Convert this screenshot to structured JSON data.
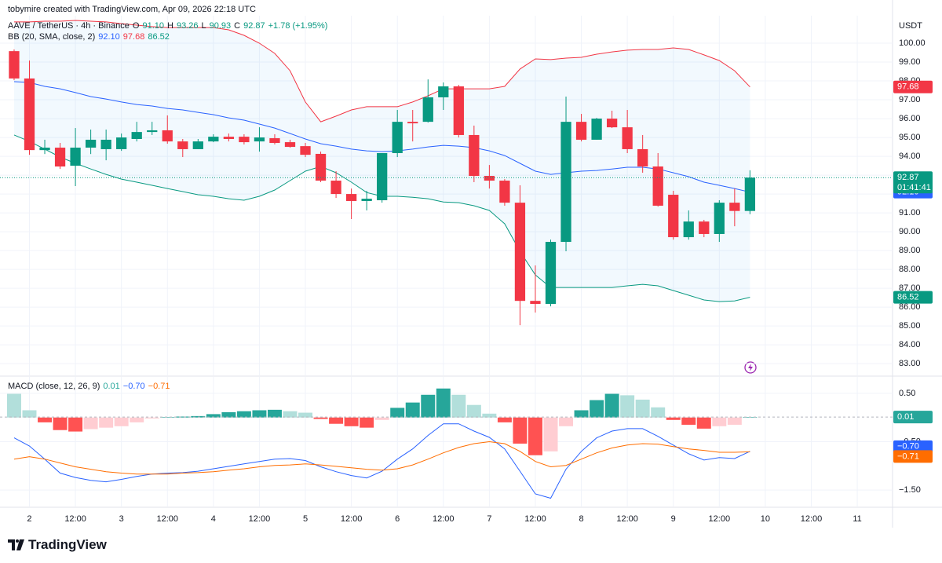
{
  "header": {
    "credit": "tobymire created with TradingView.com, Apr 09, 2026 22:18 UTC"
  },
  "footer": {
    "brand": "TradingView"
  },
  "chart_data": [
    {
      "type": "candlestick",
      "title": "AAVE / TetherUS · 4h · Binance",
      "axis_unit": "USDT",
      "legend": {
        "items": [
          {
            "label": "O",
            "value": "91.10"
          },
          {
            "label": "H",
            "value": "93.26"
          },
          {
            "label": "L",
            "value": "90.93"
          },
          {
            "label": "C",
            "value": "92.87"
          }
        ],
        "change": "+1.78 (+1.95%)"
      },
      "countdown": "01:41:41",
      "up_color": "#089981",
      "down_color": "#f23645",
      "open": [
        99.58,
        98.13,
        94.33,
        94.46,
        93.5,
        94.46,
        94.38,
        94.38,
        94.92,
        95.29,
        95.38,
        94.79,
        94.38,
        94.79,
        95.04,
        95.04,
        94.79,
        94.96,
        94.75,
        94.54,
        94.13,
        92.71,
        92.0,
        91.63,
        91.67,
        94.17,
        95.83,
        95.83,
        97.13,
        97.71,
        95.13,
        92.96,
        92.71,
        91.54,
        86.33,
        86.17,
        89.46,
        95.83,
        94.88,
        96.0,
        95.54,
        94.38,
        93.46,
        91.96,
        89.71,
        90.54,
        89.88,
        91.54,
        91.1
      ],
      "high": [
        99.67,
        99.08,
        94.88,
        94.71,
        95.5,
        95.42,
        95.42,
        95.21,
        95.83,
        95.83,
        96.17,
        94.92,
        94.92,
        95.17,
        95.21,
        95.17,
        95.54,
        95.17,
        94.88,
        94.71,
        94.25,
        93.21,
        92.29,
        92.17,
        94.17,
        96.46,
        96.46,
        98.08,
        97.92,
        97.79,
        95.63,
        93.54,
        92.79,
        92.46,
        88.21,
        89.58,
        97.17,
        96.25,
        96.04,
        96.42,
        96.46,
        95.13,
        94.17,
        92.17,
        91.13,
        90.63,
        91.67,
        92.29,
        93.26
      ],
      "low": [
        98.04,
        94.08,
        94.12,
        93.33,
        92.42,
        94.12,
        93.79,
        94.29,
        94.79,
        95.13,
        94.67,
        93.96,
        94.38,
        94.75,
        94.79,
        94.63,
        94.25,
        94.63,
        94.46,
        93.96,
        92.63,
        91.79,
        90.67,
        91.13,
        91.54,
        93.96,
        94.79,
        95.79,
        96.46,
        95.0,
        92.63,
        92.29,
        91.38,
        85.04,
        85.71,
        86.04,
        88.96,
        94.79,
        94.88,
        95.5,
        94.17,
        93.13,
        91.33,
        89.58,
        89.58,
        89.71,
        89.46,
        90.29,
        90.93
      ],
      "close": [
        98.13,
        94.33,
        94.46,
        93.46,
        94.46,
        94.88,
        94.88,
        95.0,
        95.29,
        95.38,
        94.79,
        94.38,
        94.79,
        95.04,
        94.92,
        94.75,
        95.0,
        94.71,
        94.5,
        94.08,
        92.71,
        92.0,
        91.63,
        91.75,
        94.17,
        95.83,
        95.75,
        97.13,
        97.71,
        95.13,
        92.96,
        92.71,
        91.54,
        86.33,
        86.17,
        89.46,
        95.83,
        94.88,
        96.0,
        95.54,
        94.38,
        93.46,
        91.38,
        89.71,
        90.54,
        89.88,
        91.54,
        91.1,
        92.87
      ],
      "indicator": "BB (20, SMA, close, 2)",
      "band_fill": "rgba(33,150,243,0.06)",
      "series": [
        {
          "color": "#2962ff",
          "last_label": "92.10",
          "values": [
            97.96,
            97.92,
            97.71,
            97.58,
            97.38,
            97.17,
            97.04,
            96.88,
            96.75,
            96.67,
            96.54,
            96.46,
            96.33,
            96.21,
            96.04,
            95.92,
            95.71,
            95.5,
            95.21,
            94.92,
            94.67,
            94.54,
            94.38,
            94.29,
            94.25,
            94.29,
            94.38,
            94.5,
            94.58,
            94.54,
            94.46,
            94.29,
            94.04,
            93.63,
            93.21,
            93.04,
            93.13,
            93.21,
            93.25,
            93.33,
            93.42,
            93.42,
            93.33,
            93.13,
            92.92,
            92.63,
            92.46,
            92.29,
            92.1
          ]
        },
        {
          "color": "#f23645",
          "last_label": "97.68",
          "values": [
            101.13,
            101.13,
            101.17,
            101.17,
            101.21,
            101.17,
            101.13,
            101.04,
            100.96,
            100.88,
            100.83,
            100.83,
            100.83,
            100.83,
            100.71,
            100.42,
            100.0,
            99.46,
            98.54,
            96.88,
            95.83,
            96.13,
            96.46,
            96.63,
            96.63,
            96.63,
            96.88,
            97.21,
            97.58,
            97.58,
            97.58,
            97.58,
            97.71,
            98.63,
            99.17,
            99.13,
            99.21,
            99.25,
            99.42,
            99.54,
            99.63,
            99.67,
            99.67,
            99.75,
            99.67,
            99.38,
            99.08,
            98.54,
            97.68
          ]
        },
        {
          "color": "#089981",
          "last_label": "86.52",
          "values": [
            95.13,
            94.79,
            94.38,
            93.96,
            93.63,
            93.33,
            93.04,
            92.79,
            92.63,
            92.46,
            92.29,
            92.13,
            91.96,
            91.88,
            91.75,
            91.67,
            91.88,
            92.21,
            92.71,
            93.21,
            93.46,
            93.13,
            92.63,
            92.08,
            91.88,
            91.88,
            91.83,
            91.75,
            91.58,
            91.54,
            91.38,
            91.13,
            90.42,
            88.96,
            87.71,
            87.04,
            87.04,
            87.04,
            87.04,
            87.04,
            87.13,
            87.21,
            87.13,
            86.88,
            86.63,
            86.38,
            86.29,
            86.33,
            86.52
          ]
        }
      ],
      "xlim": [
        -0.92,
        57.3
      ],
      "xticks": [
        {
          "value": 1,
          "label": "2"
        },
        {
          "value": 4,
          "label": "12:00"
        },
        {
          "value": 7,
          "label": "3"
        },
        {
          "value": 10,
          "label": "12:00"
        },
        {
          "value": 13,
          "label": "4"
        },
        {
          "value": 16,
          "label": "12:00"
        },
        {
          "value": 19,
          "label": "5"
        },
        {
          "value": 22,
          "label": "12:00"
        },
        {
          "value": 25,
          "label": "6"
        },
        {
          "value": 28,
          "label": "12:00"
        },
        {
          "value": 31,
          "label": "7"
        },
        {
          "value": 34,
          "label": "12:00"
        },
        {
          "value": 37,
          "label": "8"
        },
        {
          "value": 40,
          "label": "12:00"
        },
        {
          "value": 43,
          "label": "9"
        },
        {
          "value": 46,
          "label": "12:00"
        },
        {
          "value": 49,
          "label": "10"
        },
        {
          "value": 52,
          "label": "12:00"
        },
        {
          "value": 55,
          "label": "11"
        }
      ],
      "ylim": [
        82.38,
        101.46
      ],
      "yticks": [
        {
          "value": 83,
          "label": "83.00"
        },
        {
          "value": 84,
          "label": "84.00"
        },
        {
          "value": 85,
          "label": "85.00"
        },
        {
          "value": 86,
          "label": "86.00"
        },
        {
          "value": 87,
          "label": "87.00"
        },
        {
          "value": 88,
          "label": "88.00"
        },
        {
          "value": 89,
          "label": "89.00"
        },
        {
          "value": 90,
          "label": "90.00"
        },
        {
          "value": 91,
          "label": "91.00"
        },
        {
          "value": 92,
          "label": "92.00"
        },
        {
          "value": 93,
          "label": "93.00"
        },
        {
          "value": 94,
          "label": "94.00"
        },
        {
          "value": 95,
          "label": "95.00"
        },
        {
          "value": 96,
          "label": "96.00"
        },
        {
          "value": 97,
          "label": "97.00"
        },
        {
          "value": 98,
          "label": "98.00"
        },
        {
          "value": 99,
          "label": "99.00"
        },
        {
          "value": 100,
          "label": "100.00"
        }
      ],
      "grid": true
    },
    {
      "type": "macd",
      "title": "MACD (close, 12, 26, 9)",
      "histogram": {
        "last_label": "0.01",
        "values": [
          0.49,
          0.15,
          -0.1,
          -0.26,
          -0.29,
          -0.24,
          -0.21,
          -0.18,
          -0.1,
          -0.02,
          0.01,
          0.02,
          0.03,
          0.07,
          0.11,
          0.13,
          0.15,
          0.16,
          0.13,
          0.1,
          -0.03,
          -0.13,
          -0.18,
          -0.21,
          -0.05,
          0.2,
          0.31,
          0.47,
          0.6,
          0.47,
          0.26,
          0.08,
          -0.1,
          -0.54,
          -0.78,
          -0.7,
          -0.18,
          0.15,
          0.36,
          0.49,
          0.46,
          0.37,
          0.21,
          -0.05,
          -0.15,
          -0.23,
          -0.18,
          -0.15,
          0.01
        ],
        "colors": [
          "#b2dfdb",
          "#b2dfdb",
          "#ff5252",
          "#ff5252",
          "#ff5252",
          "#ffcdd2",
          "#ffcdd2",
          "#ffcdd2",
          "#ffcdd2",
          "#ffcdd2",
          "#26a69a",
          "#26a69a",
          "#26a69a",
          "#26a69a",
          "#26a69a",
          "#26a69a",
          "#26a69a",
          "#26a69a",
          "#b2dfdb",
          "#b2dfdb",
          "#ff5252",
          "#ff5252",
          "#ff5252",
          "#ff5252",
          "#ffcdd2",
          "#26a69a",
          "#26a69a",
          "#26a69a",
          "#26a69a",
          "#b2dfdb",
          "#b2dfdb",
          "#b2dfdb",
          "#ff5252",
          "#ff5252",
          "#ff5252",
          "#ffcdd2",
          "#ffcdd2",
          "#26a69a",
          "#26a69a",
          "#26a69a",
          "#b2dfdb",
          "#b2dfdb",
          "#b2dfdb",
          "#ff5252",
          "#ff5252",
          "#ff5252",
          "#ffcdd2",
          "#ffcdd2",
          "#26a69a"
        ],
        "color": "#26a69a"
      },
      "series": [
        {
          "color": "#2962ff",
          "last_label": "−0.70",
          "values": [
            -0.42,
            -0.59,
            -0.86,
            -1.15,
            -1.24,
            -1.3,
            -1.33,
            -1.28,
            -1.22,
            -1.17,
            -1.15,
            -1.14,
            -1.11,
            -1.06,
            -1.01,
            -0.96,
            -0.91,
            -0.86,
            -0.85,
            -0.89,
            -1.02,
            -1.12,
            -1.2,
            -1.25,
            -1.11,
            -0.86,
            -0.65,
            -0.37,
            -0.13,
            -0.13,
            -0.28,
            -0.41,
            -0.65,
            -1.11,
            -1.58,
            -1.67,
            -1.07,
            -0.7,
            -0.42,
            -0.28,
            -0.23,
            -0.23,
            -0.39,
            -0.57,
            -0.75,
            -0.88,
            -0.83,
            -0.85,
            -0.7
          ]
        },
        {
          "color": "#ff6d00",
          "last_label": "−0.71",
          "values": [
            -0.86,
            -0.81,
            -0.86,
            -0.94,
            -1.02,
            -1.07,
            -1.12,
            -1.15,
            -1.17,
            -1.17,
            -1.17,
            -1.15,
            -1.14,
            -1.12,
            -1.09,
            -1.06,
            -1.02,
            -0.99,
            -0.98,
            -0.96,
            -0.98,
            -1.01,
            -1.04,
            -1.07,
            -1.09,
            -1.06,
            -0.98,
            -0.86,
            -0.73,
            -0.62,
            -0.54,
            -0.5,
            -0.54,
            -0.7,
            -0.91,
            -1.02,
            -0.99,
            -0.86,
            -0.73,
            -0.63,
            -0.57,
            -0.54,
            -0.55,
            -0.6,
            -0.65,
            -0.68,
            -0.72,
            -0.72,
            -0.71
          ]
        }
      ],
      "ylim": [
        -1.84,
        0.84
      ],
      "yticks": [
        {
          "value": 0.5,
          "label": "0.50"
        },
        {
          "value": -0.5,
          "label": "−0.50"
        },
        {
          "value": -1.5,
          "label": "−1.50"
        }
      ],
      "grid": true
    }
  ]
}
